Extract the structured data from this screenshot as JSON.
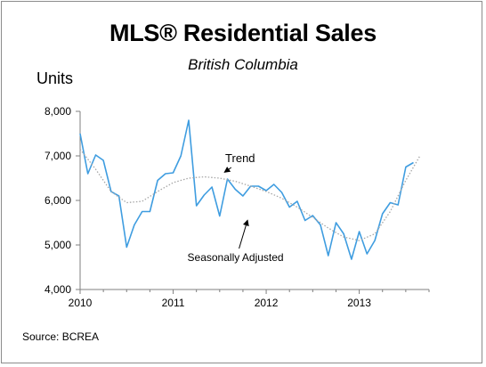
{
  "chart_data": {
    "type": "line",
    "title": "MLS® Residential Sales",
    "subtitle": "British Columbia",
    "ylabel": "Units",
    "xlabel": "",
    "ylim": [
      4000,
      8000
    ],
    "y_ticks": [
      4000,
      5000,
      6000,
      7000,
      8000
    ],
    "y_tick_labels": [
      "4,000",
      "5,000",
      "6,000",
      "7,000",
      "8,000"
    ],
    "x_range": [
      2010.0,
      2013.75
    ],
    "x_ticks": [
      2010,
      2011,
      2012,
      2013
    ],
    "x_tick_labels": [
      "2010",
      "2011",
      "2012",
      "2013"
    ],
    "grid": false,
    "series": [
      {
        "name": "Seasonally Adjusted",
        "color": "#3f9de0",
        "style": "solid",
        "x": [
          2010.0,
          2010.083,
          2010.167,
          2010.25,
          2010.333,
          2010.417,
          2010.5,
          2010.583,
          2010.667,
          2010.75,
          2010.833,
          2010.917,
          2011.0,
          2011.083,
          2011.167,
          2011.25,
          2011.333,
          2011.417,
          2011.5,
          2011.583,
          2011.667,
          2011.75,
          2011.833,
          2011.917,
          2012.0,
          2012.083,
          2012.167,
          2012.25,
          2012.333,
          2012.417,
          2012.5,
          2012.583,
          2012.667,
          2012.75,
          2012.833,
          2012.917,
          2013.0,
          2013.083,
          2013.167,
          2013.25,
          2013.333,
          2013.417,
          2013.5,
          2013.583
        ],
        "y": [
          7500,
          6600,
          7020,
          6900,
          6200,
          6100,
          4950,
          5450,
          5750,
          5750,
          6450,
          6600,
          6620,
          7000,
          7800,
          5880,
          6120,
          6300,
          5650,
          6480,
          6250,
          6100,
          6320,
          6320,
          6220,
          6360,
          6180,
          5850,
          5980,
          5550,
          5660,
          5450,
          4760,
          5500,
          5250,
          4680,
          5300,
          4800,
          5100,
          5700,
          5950,
          5900,
          6750,
          6850
        ]
      },
      {
        "name": "Trend",
        "color": "#a6a6a6",
        "style": "dotted",
        "x": [
          2010.0,
          2010.167,
          2010.333,
          2010.5,
          2010.667,
          2010.833,
          2011.0,
          2011.167,
          2011.333,
          2011.5,
          2011.667,
          2011.833,
          2012.0,
          2012.167,
          2012.333,
          2012.5,
          2012.667,
          2012.833,
          2013.0,
          2013.167,
          2013.333,
          2013.5,
          2013.65
        ],
        "y": [
          7150,
          6700,
          6200,
          5950,
          5980,
          6200,
          6400,
          6500,
          6530,
          6500,
          6430,
          6320,
          6200,
          6050,
          5850,
          5620,
          5380,
          5180,
          5100,
          5250,
          5750,
          6450,
          6990
        ]
      }
    ],
    "annotations": [
      {
        "text": "Trend",
        "x": 2011.72,
        "y": 6860,
        "arrow_to": [
          2011.55,
          6630
        ]
      },
      {
        "text": "Seasonally Adjusted",
        "x": 2011.67,
        "y": 4640,
        "arrow_to": [
          2011.8,
          5560
        ]
      }
    ],
    "source": "Source: BCREA"
  }
}
